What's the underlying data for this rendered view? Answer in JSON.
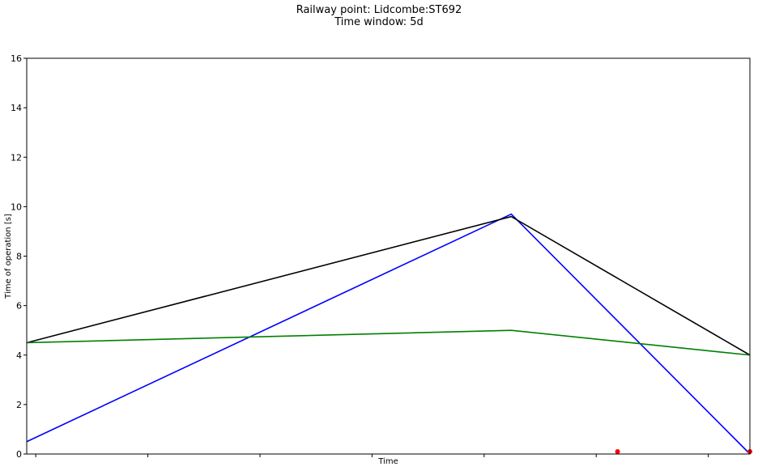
{
  "chart_data": {
    "type": "line",
    "title": "Railway point: Lidcombe:ST692",
    "subtitle": "Time window: 5d",
    "xlabel": "Time",
    "ylabel": "Time of operation [s]",
    "ylim": [
      0,
      16
    ],
    "yticks": [
      "0",
      "2",
      "4",
      "6",
      "8",
      "10",
      "12",
      "14",
      "16"
    ],
    "xlim": [
      0,
      1
    ],
    "x_tick_count": 7,
    "grid": false,
    "series": [
      {
        "color": "#0000ff",
        "x": [
          0.0,
          0.67,
          1.0
        ],
        "values": [
          0.5,
          9.7,
          0.0
        ]
      },
      {
        "color": "#000000",
        "x": [
          0.0,
          0.67,
          1.0
        ],
        "values": [
          4.5,
          9.6,
          4.0
        ]
      },
      {
        "color": "#008000",
        "x": [
          0.0,
          0.67,
          1.0
        ],
        "values": [
          4.5,
          5.0,
          4.0
        ]
      }
    ],
    "points": {
      "color": "#ff0000",
      "x": [
        0.817,
        1.0
      ],
      "values": [
        0.1,
        0.1
      ]
    }
  }
}
